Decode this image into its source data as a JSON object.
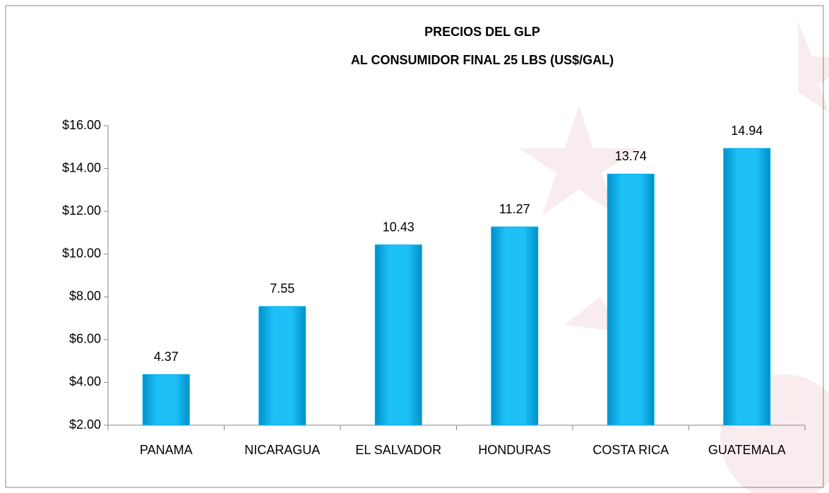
{
  "chart_data": {
    "type": "bar",
    "title": [
      "PRECIOS DEL GLP",
      "AL CONSUMIDOR FINAL  25 LBS (US$/GAL)"
    ],
    "categories": [
      "PANAMA",
      "NICARAGUA",
      "EL SALVADOR",
      "HONDURAS",
      "COSTA RICA",
      "GUATEMALA"
    ],
    "values": [
      4.37,
      7.55,
      10.43,
      11.27,
      13.74,
      14.94
    ],
    "color": "#00b0f0",
    "ylim": [
      2,
      16
    ],
    "yticks": [
      {
        "value": 2,
        "label": "$2.00"
      },
      {
        "value": 4,
        "label": "$4.00"
      },
      {
        "value": 6,
        "label": "$6.00"
      },
      {
        "value": 8,
        "label": "$8.00"
      },
      {
        "value": 10,
        "label": "$10.00"
      },
      {
        "value": 12,
        "label": "$12.00"
      },
      {
        "value": 14,
        "label": "$14.00"
      },
      {
        "value": 16,
        "label": "$16.00"
      }
    ],
    "grid": false
  }
}
